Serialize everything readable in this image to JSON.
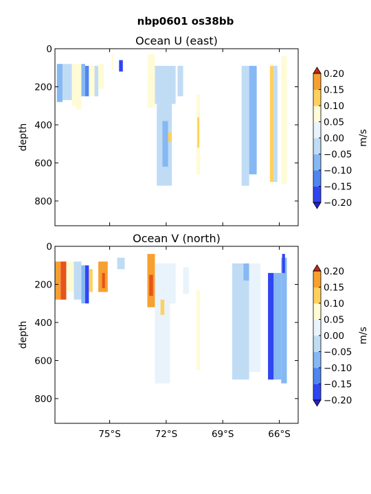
{
  "figure": {
    "suptitle": "nbp0601 os38bb"
  },
  "chart_data": [
    {
      "type": "heatmap",
      "title": "Ocean U (east)",
      "ylabel": "depth",
      "xlabel": "",
      "x_ticks": [
        "75°S",
        "72°S",
        "69°S",
        "66°S"
      ],
      "x_tick_values": [
        -75,
        -72,
        -69,
        -66
      ],
      "y_ticks": [
        0,
        200,
        400,
        600,
        800
      ],
      "ylim": [
        930,
        0
      ],
      "xlim": [
        -77.9,
        -65.0
      ],
      "colorbar": {
        "label": "m/s",
        "levels": [
          -0.2,
          -0.15,
          -0.1,
          -0.05,
          0.0,
          0.05,
          0.1,
          0.15,
          0.2
        ],
        "tick_labels": [
          "−0.20",
          "−0.15",
          "−0.10",
          "−0.05",
          "0.00",
          "0.05",
          "0.10",
          "0.15",
          "0.20"
        ],
        "colors": [
          "#2f45f2",
          "#4f86f0",
          "#86b8f3",
          "#c0dcf5",
          "#e8f3fb",
          "#fffbd5",
          "#ffd05e",
          "#f7a030",
          "#e8531b"
        ],
        "extend": "both"
      },
      "regions": [
        {
          "lon": [
            -77.8,
            -77.5
          ],
          "depth": [
            80,
            280
          ],
          "value": -0.07
        },
        {
          "lon": [
            -77.5,
            -77.0
          ],
          "depth": [
            80,
            270
          ],
          "value": -0.04
        },
        {
          "lon": [
            -77.0,
            -76.8
          ],
          "depth": [
            80,
            300
          ],
          "value": 0.07
        },
        {
          "lon": [
            -76.8,
            -76.5
          ],
          "depth": [
            80,
            320
          ],
          "value": 0.09
        },
        {
          "lon": [
            -76.5,
            -76.3
          ],
          "depth": [
            80,
            250
          ],
          "value": -0.06
        },
        {
          "lon": [
            -76.3,
            -76.1
          ],
          "depth": [
            90,
            250
          ],
          "value": -0.12
        },
        {
          "lon": [
            -76.1,
            -75.8
          ],
          "depth": [
            90,
            250
          ],
          "value": 0.05
        },
        {
          "lon": [
            -75.8,
            -75.6
          ],
          "depth": [
            90,
            250
          ],
          "value": -0.03
        },
        {
          "lon": [
            -75.6,
            -75.3
          ],
          "depth": [
            80,
            210
          ],
          "value": 0.08
        },
        {
          "lon": [
            -74.9,
            -74.8
          ],
          "depth": [
            30,
            110
          ],
          "value": 0.07
        },
        {
          "lon": [
            -74.5,
            -74.3
          ],
          "depth": [
            60,
            120
          ],
          "value": -0.22
        },
        {
          "lon": [
            -73.0,
            -72.6
          ],
          "depth": [
            30,
            310
          ],
          "value": 0.06
        },
        {
          "lon": [
            -72.6,
            -71.5
          ],
          "depth": [
            90,
            290
          ],
          "value": -0.04
        },
        {
          "lon": [
            -72.5,
            -71.7
          ],
          "depth": [
            290,
            720
          ],
          "value": -0.05
        },
        {
          "lon": [
            -72.2,
            -71.9
          ],
          "depth": [
            380,
            620
          ],
          "value": -0.08
        },
        {
          "lon": [
            -71.9,
            -71.7
          ],
          "depth": [
            440,
            490
          ],
          "value": 0.14
        },
        {
          "lon": [
            -71.4,
            -71.1
          ],
          "depth": [
            90,
            250
          ],
          "value": -0.02
        },
        {
          "lon": [
            -70.4,
            -70.2
          ],
          "depth": [
            240,
            660
          ],
          "value": 0.06
        },
        {
          "lon": [
            -70.35,
            -70.25
          ],
          "depth": [
            360,
            520
          ],
          "value": 0.13
        },
        {
          "lon": [
            -68.0,
            -67.6
          ],
          "depth": [
            90,
            720
          ],
          "value": -0.03
        },
        {
          "lon": [
            -67.6,
            -67.2
          ],
          "depth": [
            90,
            660
          ],
          "value": -0.06
        },
        {
          "lon": [
            -66.5,
            -66.3
          ],
          "depth": [
            90,
            700
          ],
          "value": 0.1
        },
        {
          "lon": [
            -66.3,
            -66.1
          ],
          "depth": [
            90,
            700
          ],
          "value": -0.05
        },
        {
          "lon": [
            -65.9,
            -65.6
          ],
          "depth": [
            40,
            710
          ],
          "value": 0.08
        }
      ]
    },
    {
      "type": "heatmap",
      "title": "Ocean V (north)",
      "ylabel": "depth",
      "xlabel": "",
      "x_ticks": [
        "75°S",
        "72°S",
        "69°S",
        "66°S"
      ],
      "x_tick_values": [
        -75,
        -72,
        -69,
        -66
      ],
      "y_ticks": [
        0,
        200,
        400,
        600,
        800
      ],
      "ylim": [
        930,
        0
      ],
      "xlim": [
        -77.9,
        -65.0
      ],
      "colorbar": {
        "label": "m/s",
        "levels": [
          -0.2,
          -0.15,
          -0.1,
          -0.05,
          0.0,
          0.05,
          0.1,
          0.15,
          0.2
        ],
        "tick_labels": [
          "−0.20",
          "−0.15",
          "−0.10",
          "−0.05",
          "0.00",
          "0.05",
          "0.10",
          "0.15",
          "0.20"
        ],
        "colors": [
          "#2f45f2",
          "#4f86f0",
          "#86b8f3",
          "#c0dcf5",
          "#e8f3fb",
          "#fffbd5",
          "#ffd05e",
          "#f7a030",
          "#e8531b"
        ],
        "extend": "both"
      },
      "regions": [
        {
          "lon": [
            -77.9,
            -77.6
          ],
          "depth": [
            80,
            280
          ],
          "value": 0.16
        },
        {
          "lon": [
            -77.6,
            -77.3
          ],
          "depth": [
            80,
            280
          ],
          "value": 0.2
        },
        {
          "lon": [
            -77.3,
            -76.9
          ],
          "depth": [
            80,
            240
          ],
          "value": 0.05
        },
        {
          "lon": [
            -76.9,
            -76.5
          ],
          "depth": [
            80,
            280
          ],
          "value": -0.03
        },
        {
          "lon": [
            -76.5,
            -76.3
          ],
          "depth": [
            100,
            300
          ],
          "value": -0.06
        },
        {
          "lon": [
            -76.3,
            -76.1
          ],
          "depth": [
            100,
            300
          ],
          "value": -0.2
        },
        {
          "lon": [
            -76.1,
            -75.9
          ],
          "depth": [
            120,
            240
          ],
          "value": 0.1
        },
        {
          "lon": [
            -75.6,
            -75.1
          ],
          "depth": [
            80,
            240
          ],
          "value": 0.16
        },
        {
          "lon": [
            -75.4,
            -75.25
          ],
          "depth": [
            140,
            220
          ],
          "value": 0.2
        },
        {
          "lon": [
            -74.6,
            -74.2
          ],
          "depth": [
            60,
            120
          ],
          "value": -0.03
        },
        {
          "lon": [
            -73.0,
            -72.6
          ],
          "depth": [
            40,
            320
          ],
          "value": 0.16
        },
        {
          "lon": [
            -72.9,
            -72.7
          ],
          "depth": [
            150,
            260
          ],
          "value": 0.2
        },
        {
          "lon": [
            -72.6,
            -72.2
          ],
          "depth": [
            90,
            330
          ],
          "value": 0.04
        },
        {
          "lon": [
            -72.2,
            -71.5
          ],
          "depth": [
            90,
            300
          ],
          "value": 0.02
        },
        {
          "lon": [
            -72.6,
            -71.8
          ],
          "depth": [
            280,
            720
          ],
          "value": 0.04
        },
        {
          "lon": [
            -72.3,
            -72.1
          ],
          "depth": [
            280,
            360
          ],
          "value": 0.12
        },
        {
          "lon": [
            -71.1,
            -70.8
          ],
          "depth": [
            110,
            250
          ],
          "value": 0.02
        },
        {
          "lon": [
            -70.4,
            -70.2
          ],
          "depth": [
            230,
            650
          ],
          "value": 0.05
        },
        {
          "lon": [
            -68.5,
            -67.6
          ],
          "depth": [
            90,
            700
          ],
          "value": -0.03
        },
        {
          "lon": [
            -67.9,
            -67.6
          ],
          "depth": [
            90,
            180
          ],
          "value": -0.06
        },
        {
          "lon": [
            -67.6,
            -67.0
          ],
          "depth": [
            90,
            660
          ],
          "value": 0.03
        },
        {
          "lon": [
            -66.6,
            -66.3
          ],
          "depth": [
            140,
            700
          ],
          "value": -0.16
        },
        {
          "lon": [
            -66.3,
            -65.9
          ],
          "depth": [
            140,
            700
          ],
          "value": -0.06
        },
        {
          "lon": [
            -65.9,
            -65.6
          ],
          "depth": [
            60,
            720
          ],
          "value": -0.1
        },
        {
          "lon": [
            -65.85,
            -65.7
          ],
          "depth": [
            40,
            140
          ],
          "value": -0.18
        }
      ]
    }
  ]
}
